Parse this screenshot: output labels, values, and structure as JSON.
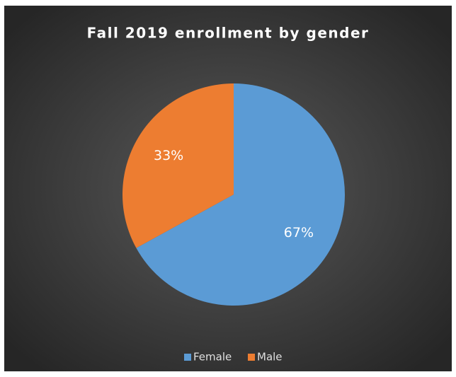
{
  "chart_data": {
    "type": "pie",
    "title": "Fall 2019 enrollment by gender",
    "categories": [
      "Female",
      "Male"
    ],
    "values": [
      67,
      33
    ],
    "value_labels": [
      "67%",
      "33%"
    ],
    "colors": [
      "#5b9bd5",
      "#ed7d31"
    ],
    "legend": "bottom"
  }
}
